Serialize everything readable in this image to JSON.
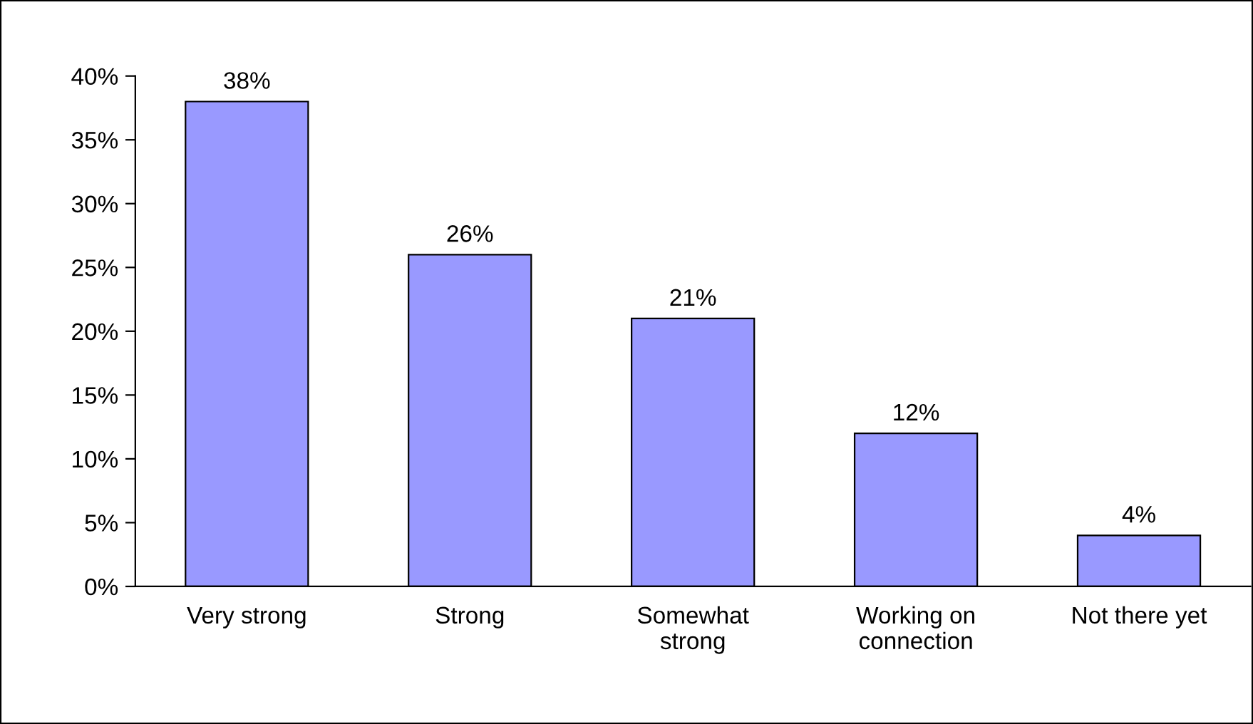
{
  "chart_data": {
    "type": "bar",
    "categories": [
      "Very strong",
      "Strong",
      "Somewhat\nstrong",
      "Working on\nconnection",
      "Not there yet"
    ],
    "values": [
      38,
      26,
      21,
      12,
      4
    ],
    "value_labels": [
      "38%",
      "26%",
      "21%",
      "12%",
      "4%"
    ],
    "color": "#9999ff",
    "ylim": [
      0,
      40
    ],
    "yticks": [
      {
        "value": 0,
        "label": "0%"
      },
      {
        "value": 5,
        "label": "5%"
      },
      {
        "value": 10,
        "label": "10%"
      },
      {
        "value": 15,
        "label": "15%"
      },
      {
        "value": 20,
        "label": "20%"
      },
      {
        "value": 25,
        "label": "25%"
      },
      {
        "value": 30,
        "label": "30%"
      },
      {
        "value": 35,
        "label": "35%"
      },
      {
        "value": 40,
        "label": "40%"
      }
    ],
    "grid": false,
    "legend": false
  }
}
